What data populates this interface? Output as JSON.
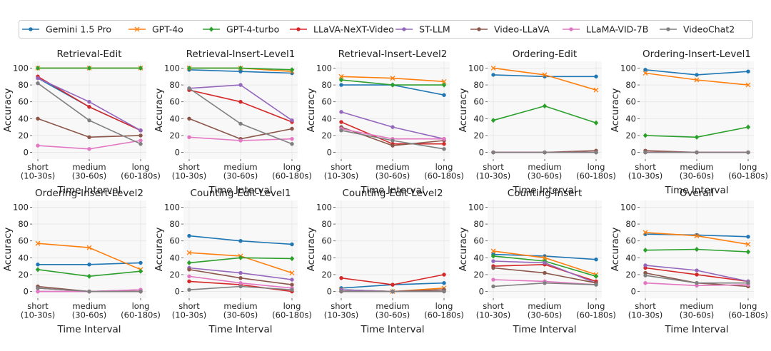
{
  "figure": {
    "categories": [
      "short\n(10-30s)",
      "medium\n(30-60s)",
      "long\n(60-180s)"
    ],
    "xlabel": "Time Interval",
    "ylabel": "Accuracy",
    "yticks": [
      "0",
      "20",
      "40",
      "60",
      "80",
      "100"
    ]
  },
  "legend": [
    {
      "name": "Gemini 1.5 Pro",
      "color": "#1f77b4",
      "marker": "circle"
    },
    {
      "name": "GPT-4o",
      "color": "#ff7f0e",
      "marker": "x"
    },
    {
      "name": "GPT-4-turbo",
      "color": "#2ca02c",
      "marker": "diamond"
    },
    {
      "name": "LLaVA-NeXT-Video",
      "color": "#d62728",
      "marker": "circle"
    },
    {
      "name": "ST-LLM",
      "color": "#9467bd",
      "marker": "circle"
    },
    {
      "name": "Video-LLaVA",
      "color": "#8c564b",
      "marker": "circle"
    },
    {
      "name": "LLaMA-VID-7B",
      "color": "#e377c2",
      "marker": "circle"
    },
    {
      "name": "VideoChat2",
      "color": "#7f7f7f",
      "marker": "circle"
    }
  ],
  "chart_data": [
    {
      "type": "line",
      "title": "Retrieval-Edit",
      "categories": [
        "short\n(10-30s)",
        "medium\n(30-60s)",
        "long\n(60-180s)"
      ],
      "xlabel": "Time Interval",
      "ylabel": "Accuracy",
      "ylim": [
        -8,
        108
      ],
      "series": [
        {
          "name": "Gemini 1.5 Pro",
          "values": [
            88,
            54,
            26
          ]
        },
        {
          "name": "GPT-4o",
          "values": [
            100,
            100,
            100
          ]
        },
        {
          "name": "GPT-4-turbo",
          "values": [
            100,
            100,
            100
          ]
        },
        {
          "name": "LLaVA-NeXT-Video",
          "values": [
            90,
            54,
            26
          ]
        },
        {
          "name": "ST-LLM",
          "values": [
            88,
            60,
            26
          ]
        },
        {
          "name": "Video-LLaVA",
          "values": [
            40,
            18,
            20
          ]
        },
        {
          "name": "LLaMA-VID-7B",
          "values": [
            8,
            4,
            14
          ]
        },
        {
          "name": "VideoChat2",
          "values": [
            82,
            38,
            10
          ]
        }
      ]
    },
    {
      "type": "line",
      "title": "Retrieval-Insert-Level1",
      "categories": [
        "short\n(10-30s)",
        "medium\n(30-60s)",
        "long\n(60-180s)"
      ],
      "xlabel": "Time Interval",
      "ylabel": "Accuracy",
      "ylim": [
        -8,
        108
      ],
      "series": [
        {
          "name": "Gemini 1.5 Pro",
          "values": [
            98,
            96,
            94
          ]
        },
        {
          "name": "GPT-4o",
          "values": [
            100,
            100,
            96
          ]
        },
        {
          "name": "GPT-4-turbo",
          "values": [
            100,
            100,
            98
          ]
        },
        {
          "name": "LLaVA-NeXT-Video",
          "values": [
            74,
            60,
            36
          ]
        },
        {
          "name": "ST-LLM",
          "values": [
            76,
            80,
            38
          ]
        },
        {
          "name": "Video-LLaVA",
          "values": [
            40,
            16,
            28
          ]
        },
        {
          "name": "LLaMA-VID-7B",
          "values": [
            18,
            14,
            16
          ]
        },
        {
          "name": "VideoChat2",
          "values": [
            76,
            34,
            10
          ]
        }
      ]
    },
    {
      "type": "line",
      "title": "Retrieval-Insert-Level2",
      "categories": [
        "short\n(10-30s)",
        "medium\n(30-60s)",
        "long\n(60-180s)"
      ],
      "xlabel": "Time Interval",
      "ylabel": "Accuracy",
      "ylim": [
        -8,
        108
      ],
      "series": [
        {
          "name": "Gemini 1.5 Pro",
          "values": [
            80,
            80,
            68
          ]
        },
        {
          "name": "GPT-4o",
          "values": [
            90,
            88,
            84
          ]
        },
        {
          "name": "GPT-4-turbo",
          "values": [
            86,
            80,
            80
          ]
        },
        {
          "name": "LLaVA-NeXT-Video",
          "values": [
            36,
            10,
            10
          ]
        },
        {
          "name": "ST-LLM",
          "values": [
            48,
            30,
            16
          ]
        },
        {
          "name": "Video-LLaVA",
          "values": [
            30,
            8,
            14
          ]
        },
        {
          "name": "LLaMA-VID-7B",
          "values": [
            28,
            16,
            16
          ]
        },
        {
          "name": "VideoChat2",
          "values": [
            26,
            14,
            4
          ]
        }
      ]
    },
    {
      "type": "line",
      "title": "Ordering-Edit",
      "categories": [
        "short\n(10-30s)",
        "medium\n(30-60s)",
        "long\n(60-180s)"
      ],
      "xlabel": "Time Interval",
      "ylabel": "Accuracy",
      "ylim": [
        -8,
        108
      ],
      "series": [
        {
          "name": "Gemini 1.5 Pro",
          "values": [
            92,
            90,
            90
          ]
        },
        {
          "name": "GPT-4o",
          "values": [
            100,
            92,
            74
          ]
        },
        {
          "name": "GPT-4-turbo",
          "values": [
            38,
            55,
            35
          ]
        },
        {
          "name": "LLaVA-NeXT-Video",
          "values": [
            0,
            0,
            0
          ]
        },
        {
          "name": "ST-LLM",
          "values": [
            0,
            0,
            0
          ]
        },
        {
          "name": "Video-LLaVA",
          "values": [
            0,
            0,
            2
          ]
        },
        {
          "name": "LLaMA-VID-7B",
          "values": [
            0,
            0,
            0
          ]
        },
        {
          "name": "VideoChat2",
          "values": [
            0,
            0,
            0
          ]
        }
      ]
    },
    {
      "type": "line",
      "title": "Ordering-Insert-Level1",
      "categories": [
        "short\n(10-30s)",
        "medium\n(30-60s)",
        "long\n(60-180s)"
      ],
      "xlabel": "Time Interval",
      "ylabel": "Accuracy",
      "ylim": [
        -8,
        108
      ],
      "series": [
        {
          "name": "Gemini 1.5 Pro",
          "values": [
            98,
            92,
            96
          ]
        },
        {
          "name": "GPT-4o",
          "values": [
            94,
            86,
            80
          ]
        },
        {
          "name": "GPT-4-turbo",
          "values": [
            20,
            18,
            30
          ]
        },
        {
          "name": "LLaVA-NeXT-Video",
          "values": [
            0,
            0,
            0
          ]
        },
        {
          "name": "ST-LLM",
          "values": [
            0,
            0,
            0
          ]
        },
        {
          "name": "Video-LLaVA",
          "values": [
            2,
            0,
            0
          ]
        },
        {
          "name": "LLaMA-VID-7B",
          "values": [
            0,
            0,
            0
          ]
        },
        {
          "name": "VideoChat2",
          "values": [
            0,
            0,
            0
          ]
        }
      ]
    },
    {
      "type": "line",
      "title": "Ordering-Insert-Level2",
      "categories": [
        "short\n(10-30s)",
        "medium\n(30-60s)",
        "long\n(60-180s)"
      ],
      "xlabel": "Time Interval",
      "ylabel": "Accuracy",
      "ylim": [
        -8,
        108
      ],
      "series": [
        {
          "name": "Gemini 1.5 Pro",
          "values": [
            32,
            32,
            34
          ]
        },
        {
          "name": "GPT-4o",
          "values": [
            57,
            52,
            26
          ]
        },
        {
          "name": "GPT-4-turbo",
          "values": [
            26,
            18,
            24
          ]
        },
        {
          "name": "LLaVA-NeXT-Video",
          "values": [
            4,
            0,
            0
          ]
        },
        {
          "name": "ST-LLM",
          "values": [
            0,
            0,
            2
          ]
        },
        {
          "name": "Video-LLaVA",
          "values": [
            6,
            0,
            0
          ]
        },
        {
          "name": "LLaMA-VID-7B",
          "values": [
            0,
            0,
            2
          ]
        },
        {
          "name": "VideoChat2",
          "values": [
            4,
            0,
            0
          ]
        }
      ]
    },
    {
      "type": "line",
      "title": "Counting-Edit-Level1",
      "categories": [
        "short\n(10-30s)",
        "medium\n(30-60s)",
        "long\n(60-180s)"
      ],
      "xlabel": "Time Interval",
      "ylabel": "Accuracy",
      "ylim": [
        -8,
        108
      ],
      "series": [
        {
          "name": "Gemini 1.5 Pro",
          "values": [
            66,
            60,
            56
          ]
        },
        {
          "name": "GPT-4o",
          "values": [
            46,
            42,
            22
          ]
        },
        {
          "name": "GPT-4-turbo",
          "values": [
            34,
            40,
            39
          ]
        },
        {
          "name": "LLaVA-NeXT-Video",
          "values": [
            12,
            8,
            0
          ]
        },
        {
          "name": "ST-LLM",
          "values": [
            28,
            22,
            14
          ]
        },
        {
          "name": "Video-LLaVA",
          "values": [
            26,
            16,
            8
          ]
        },
        {
          "name": "LLaMA-VID-7B",
          "values": [
            18,
            10,
            4
          ]
        },
        {
          "name": "VideoChat2",
          "values": [
            2,
            6,
            2
          ]
        }
      ]
    },
    {
      "type": "line",
      "title": "Counting-Edit-Level2",
      "categories": [
        "short\n(10-30s)",
        "medium\n(30-60s)",
        "long\n(60-180s)"
      ],
      "xlabel": "Time Interval",
      "ylabel": "Accuracy",
      "ylim": [
        -8,
        108
      ],
      "series": [
        {
          "name": "Gemini 1.5 Pro",
          "values": [
            4,
            8,
            10
          ]
        },
        {
          "name": "GPT-4o",
          "values": [
            2,
            0,
            4
          ]
        },
        {
          "name": "GPT-4-turbo",
          "values": [
            2,
            0,
            2
          ]
        },
        {
          "name": "LLaVA-NeXT-Video",
          "values": [
            16,
            8,
            20
          ]
        },
        {
          "name": "ST-LLM",
          "values": [
            2,
            0,
            2
          ]
        },
        {
          "name": "Video-LLaVA",
          "values": [
            0,
            0,
            2
          ]
        },
        {
          "name": "LLaMA-VID-7B",
          "values": [
            0,
            0,
            0
          ]
        },
        {
          "name": "VideoChat2",
          "values": [
            0,
            0,
            0
          ]
        }
      ]
    },
    {
      "type": "line",
      "title": "Counting-Insert",
      "categories": [
        "short\n(10-30s)",
        "medium\n(30-60s)",
        "long\n(60-180s)"
      ],
      "xlabel": "Time Interval",
      "ylabel": "Accuracy",
      "ylim": [
        -8,
        108
      ],
      "series": [
        {
          "name": "Gemini 1.5 Pro",
          "values": [
            44,
            42,
            38
          ]
        },
        {
          "name": "GPT-4o",
          "values": [
            48,
            40,
            20
          ]
        },
        {
          "name": "GPT-4-turbo",
          "values": [
            42,
            36,
            18
          ]
        },
        {
          "name": "LLaVA-NeXT-Video",
          "values": [
            30,
            32,
            12
          ]
        },
        {
          "name": "ST-LLM",
          "values": [
            36,
            34,
            10
          ]
        },
        {
          "name": "Video-LLaVA",
          "values": [
            28,
            22,
            10
          ]
        },
        {
          "name": "LLaMA-VID-7B",
          "values": [
            14,
            12,
            8
          ]
        },
        {
          "name": "VideoChat2",
          "values": [
            6,
            10,
            8
          ]
        }
      ]
    },
    {
      "type": "line",
      "title": "Overall",
      "categories": [
        "short\n(10-30s)",
        "medium\n(30-60s)",
        "long\n(60-180s)"
      ],
      "xlabel": "Time Interval",
      "ylabel": "Accuracy",
      "ylim": [
        -8,
        108
      ],
      "series": [
        {
          "name": "Gemini 1.5 Pro",
          "values": [
            68,
            67,
            65
          ]
        },
        {
          "name": "GPT-4o",
          "values": [
            70,
            66,
            56
          ]
        },
        {
          "name": "GPT-4-turbo",
          "values": [
            49,
            50,
            47
          ]
        },
        {
          "name": "LLaVA-NeXT-Video",
          "values": [
            28,
            20,
            12
          ]
        },
        {
          "name": "ST-LLM",
          "values": [
            31,
            25,
            12
          ]
        },
        {
          "name": "Video-LLaVA",
          "values": [
            22,
            10,
            6
          ]
        },
        {
          "name": "LLaMA-VID-7B",
          "values": [
            10,
            7,
            8
          ]
        },
        {
          "name": "VideoChat2",
          "values": [
            19,
            10,
            10
          ]
        }
      ]
    }
  ]
}
